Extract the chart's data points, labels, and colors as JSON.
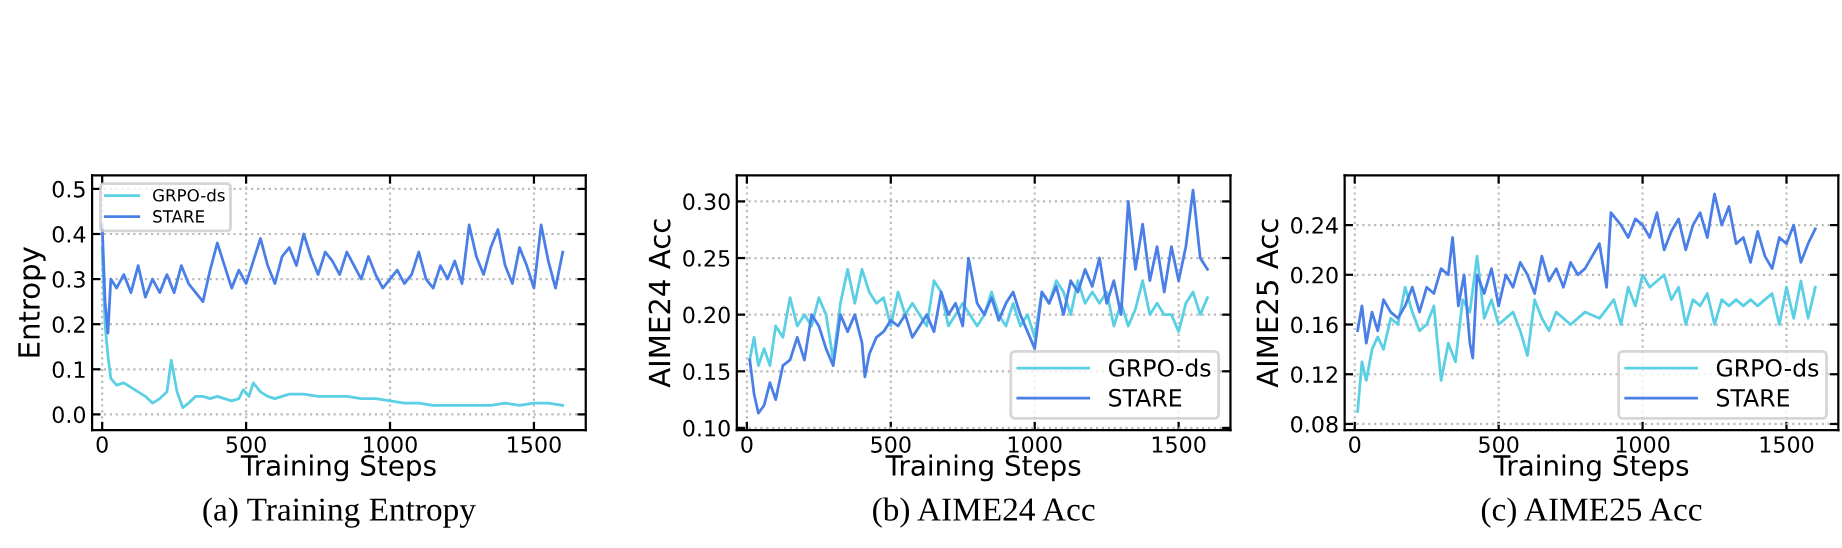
{
  "chart_data": [
    {
      "type": "line",
      "title": "(a) Training Entropy",
      "xlabel": "Training Steps",
      "ylabel": "Entropy",
      "xlim": [
        -35,
        1680
      ],
      "ylim": [
        -0.035,
        0.53
      ],
      "xticks": [
        0,
        500,
        1000,
        1500
      ],
      "yticks": [
        {
          "value": 0.0,
          "label": "0.0"
        },
        {
          "value": 0.1,
          "label": "0.1"
        },
        {
          "value": 0.2,
          "label": "0.2"
        },
        {
          "value": 0.3,
          "label": "0.3"
        },
        {
          "value": 0.4,
          "label": "0.4"
        },
        {
          "value": 0.5,
          "label": "0.5"
        }
      ],
      "grid": true,
      "legend": "top left",
      "series": [
        {
          "name": "GRPO-ds",
          "color": "#5bcfe3",
          "x": [
            0,
            10,
            20,
            30,
            50,
            75,
            100,
            125,
            150,
            175,
            200,
            225,
            240,
            260,
            280,
            300,
            325,
            350,
            375,
            400,
            425,
            450,
            475,
            490,
            510,
            525,
            550,
            575,
            600,
            650,
            700,
            750,
            800,
            850,
            900,
            950,
            1000,
            1050,
            1100,
            1150,
            1200,
            1250,
            1300,
            1350,
            1400,
            1450,
            1500,
            1550,
            1600
          ],
          "values": [
            0.37,
            0.2,
            0.13,
            0.08,
            0.065,
            0.07,
            0.06,
            0.05,
            0.04,
            0.025,
            0.035,
            0.05,
            0.12,
            0.05,
            0.015,
            0.025,
            0.04,
            0.04,
            0.035,
            0.04,
            0.035,
            0.03,
            0.035,
            0.055,
            0.04,
            0.07,
            0.05,
            0.04,
            0.035,
            0.045,
            0.045,
            0.04,
            0.04,
            0.04,
            0.035,
            0.035,
            0.03,
            0.025,
            0.025,
            0.02,
            0.02,
            0.02,
            0.02,
            0.02,
            0.025,
            0.02,
            0.025,
            0.025,
            0.02
          ]
        },
        {
          "name": "STARE",
          "color": "#4a7fe8",
          "x": [
            0,
            10,
            20,
            30,
            50,
            75,
            100,
            125,
            150,
            175,
            200,
            225,
            250,
            275,
            300,
            325,
            350,
            375,
            400,
            425,
            450,
            475,
            500,
            525,
            550,
            575,
            600,
            625,
            650,
            675,
            700,
            725,
            750,
            775,
            800,
            825,
            850,
            875,
            900,
            925,
            950,
            975,
            1000,
            1025,
            1050,
            1075,
            1100,
            1125,
            1150,
            1175,
            1200,
            1225,
            1250,
            1275,
            1300,
            1325,
            1350,
            1375,
            1400,
            1425,
            1450,
            1475,
            1500,
            1525,
            1550,
            1575,
            1600
          ],
          "values": [
            0.42,
            0.25,
            0.18,
            0.3,
            0.28,
            0.31,
            0.27,
            0.33,
            0.26,
            0.3,
            0.27,
            0.31,
            0.27,
            0.33,
            0.29,
            0.27,
            0.25,
            0.32,
            0.38,
            0.33,
            0.28,
            0.32,
            0.29,
            0.34,
            0.39,
            0.33,
            0.29,
            0.35,
            0.37,
            0.33,
            0.4,
            0.35,
            0.31,
            0.36,
            0.34,
            0.31,
            0.36,
            0.33,
            0.3,
            0.35,
            0.31,
            0.28,
            0.3,
            0.32,
            0.29,
            0.31,
            0.36,
            0.3,
            0.28,
            0.33,
            0.3,
            0.34,
            0.29,
            0.42,
            0.35,
            0.31,
            0.37,
            0.41,
            0.33,
            0.29,
            0.37,
            0.33,
            0.28,
            0.42,
            0.34,
            0.28,
            0.36
          ]
        }
      ]
    },
    {
      "type": "line",
      "title": "(b) AIME24 Acc",
      "xlabel": "Training Steps",
      "ylabel": "AIME24 Acc",
      "xlim": [
        -35,
        1680
      ],
      "ylim": [
        0.098,
        0.323
      ],
      "xticks": [
        0,
        500,
        1000,
        1500
      ],
      "yticks": [
        {
          "value": 0.1,
          "label": "0.10"
        },
        {
          "value": 0.15,
          "label": "0.15"
        },
        {
          "value": 0.2,
          "label": "0.20"
        },
        {
          "value": 0.25,
          "label": "0.25"
        },
        {
          "value": 0.3,
          "label": "0.30"
        }
      ],
      "grid": true,
      "legend": "lower right",
      "series": [
        {
          "name": "GRPO-ds",
          "color": "#5bcfe3",
          "x": [
            10,
            25,
            40,
            60,
            80,
            100,
            125,
            150,
            175,
            200,
            225,
            250,
            275,
            300,
            325,
            350,
            375,
            400,
            425,
            450,
            475,
            500,
            525,
            550,
            575,
            600,
            625,
            650,
            675,
            700,
            725,
            750,
            775,
            800,
            825,
            850,
            875,
            900,
            925,
            950,
            975,
            1000,
            1025,
            1050,
            1075,
            1100,
            1125,
            1150,
            1175,
            1200,
            1225,
            1250,
            1275,
            1300,
            1325,
            1350,
            1375,
            1400,
            1425,
            1450,
            1475,
            1500,
            1525,
            1550,
            1575,
            1600
          ],
          "values": [
            0.16,
            0.18,
            0.155,
            0.17,
            0.155,
            0.19,
            0.18,
            0.215,
            0.19,
            0.2,
            0.19,
            0.215,
            0.2,
            0.16,
            0.21,
            0.24,
            0.21,
            0.24,
            0.22,
            0.21,
            0.215,
            0.19,
            0.22,
            0.2,
            0.21,
            0.2,
            0.19,
            0.23,
            0.22,
            0.19,
            0.2,
            0.21,
            0.2,
            0.19,
            0.2,
            0.22,
            0.2,
            0.19,
            0.21,
            0.19,
            0.2,
            0.18,
            0.22,
            0.21,
            0.23,
            0.22,
            0.2,
            0.23,
            0.21,
            0.22,
            0.21,
            0.22,
            0.19,
            0.21,
            0.19,
            0.205,
            0.23,
            0.2,
            0.21,
            0.2,
            0.2,
            0.185,
            0.21,
            0.22,
            0.2,
            0.215
          ]
        },
        {
          "name": "STARE",
          "color": "#4a7fe8",
          "x": [
            10,
            25,
            40,
            60,
            80,
            100,
            125,
            150,
            175,
            200,
            225,
            250,
            275,
            300,
            325,
            350,
            375,
            400,
            410,
            425,
            450,
            475,
            500,
            525,
            550,
            575,
            600,
            625,
            650,
            675,
            700,
            725,
            750,
            770,
            800,
            825,
            850,
            875,
            900,
            925,
            950,
            975,
            1000,
            1025,
            1050,
            1075,
            1100,
            1125,
            1150,
            1175,
            1200,
            1225,
            1250,
            1275,
            1300,
            1325,
            1350,
            1375,
            1400,
            1425,
            1450,
            1475,
            1500,
            1525,
            1550,
            1575,
            1600
          ],
          "values": [
            0.16,
            0.13,
            0.113,
            0.12,
            0.14,
            0.125,
            0.155,
            0.16,
            0.18,
            0.16,
            0.2,
            0.19,
            0.17,
            0.155,
            0.2,
            0.185,
            0.2,
            0.175,
            0.145,
            0.165,
            0.18,
            0.185,
            0.195,
            0.19,
            0.2,
            0.18,
            0.19,
            0.2,
            0.185,
            0.22,
            0.2,
            0.21,
            0.19,
            0.25,
            0.21,
            0.2,
            0.215,
            0.195,
            0.21,
            0.22,
            0.2,
            0.185,
            0.17,
            0.22,
            0.21,
            0.225,
            0.2,
            0.23,
            0.22,
            0.24,
            0.225,
            0.25,
            0.21,
            0.23,
            0.2,
            0.3,
            0.24,
            0.28,
            0.23,
            0.26,
            0.22,
            0.26,
            0.23,
            0.26,
            0.31,
            0.25,
            0.24
          ]
        }
      ]
    },
    {
      "type": "line",
      "title": "(c) AIME25 Acc",
      "xlabel": "Training Steps",
      "ylabel": "AIME25 Acc",
      "xlim": [
        -35,
        1680
      ],
      "ylim": [
        0.075,
        0.28
      ],
      "xticks": [
        0,
        500,
        1000,
        1500
      ],
      "yticks": [
        {
          "value": 0.08,
          "label": "0.08"
        },
        {
          "value": 0.12,
          "label": "0.12"
        },
        {
          "value": 0.16,
          "label": "0.16"
        },
        {
          "value": 0.2,
          "label": "0.20"
        },
        {
          "value": 0.24,
          "label": "0.24"
        }
      ],
      "grid": true,
      "legend": "lower right",
      "series": [
        {
          "name": "GRPO-ds",
          "color": "#5bcfe3",
          "x": [
            10,
            25,
            40,
            60,
            80,
            100,
            125,
            150,
            175,
            200,
            225,
            250,
            275,
            300,
            325,
            350,
            375,
            400,
            425,
            450,
            475,
            500,
            525,
            550,
            575,
            600,
            625,
            650,
            675,
            700,
            750,
            800,
            850,
            900,
            925,
            950,
            975,
            1000,
            1025,
            1050,
            1075,
            1100,
            1125,
            1150,
            1175,
            1200,
            1225,
            1250,
            1275,
            1300,
            1325,
            1350,
            1375,
            1400,
            1425,
            1450,
            1475,
            1500,
            1525,
            1550,
            1575,
            1600
          ],
          "values": [
            0.09,
            0.13,
            0.115,
            0.14,
            0.15,
            0.14,
            0.165,
            0.16,
            0.19,
            0.17,
            0.155,
            0.16,
            0.175,
            0.115,
            0.145,
            0.13,
            0.18,
            0.17,
            0.215,
            0.165,
            0.18,
            0.16,
            0.165,
            0.17,
            0.155,
            0.135,
            0.18,
            0.165,
            0.155,
            0.17,
            0.16,
            0.17,
            0.165,
            0.18,
            0.16,
            0.19,
            0.175,
            0.2,
            0.19,
            0.195,
            0.2,
            0.18,
            0.19,
            0.16,
            0.18,
            0.175,
            0.185,
            0.16,
            0.18,
            0.175,
            0.18,
            0.175,
            0.18,
            0.175,
            0.18,
            0.185,
            0.16,
            0.19,
            0.165,
            0.195,
            0.165,
            0.19
          ]
        },
        {
          "name": "STARE",
          "color": "#4a7fe8",
          "x": [
            10,
            25,
            40,
            60,
            80,
            100,
            125,
            150,
            175,
            200,
            225,
            250,
            275,
            300,
            325,
            340,
            360,
            380,
            400,
            410,
            425,
            450,
            475,
            500,
            525,
            550,
            575,
            600,
            625,
            650,
            675,
            700,
            725,
            750,
            775,
            800,
            825,
            850,
            875,
            890,
            925,
            950,
            975,
            1000,
            1025,
            1050,
            1075,
            1100,
            1125,
            1150,
            1175,
            1200,
            1225,
            1250,
            1275,
            1300,
            1325,
            1350,
            1375,
            1400,
            1425,
            1450,
            1475,
            1500,
            1525,
            1550,
            1575,
            1600
          ],
          "values": [
            0.155,
            0.175,
            0.145,
            0.17,
            0.155,
            0.18,
            0.17,
            0.165,
            0.175,
            0.19,
            0.17,
            0.19,
            0.185,
            0.205,
            0.2,
            0.23,
            0.175,
            0.2,
            0.145,
            0.133,
            0.2,
            0.185,
            0.205,
            0.175,
            0.2,
            0.19,
            0.21,
            0.2,
            0.185,
            0.215,
            0.195,
            0.205,
            0.19,
            0.21,
            0.2,
            0.205,
            0.215,
            0.225,
            0.19,
            0.25,
            0.24,
            0.23,
            0.245,
            0.24,
            0.23,
            0.25,
            0.22,
            0.235,
            0.245,
            0.22,
            0.24,
            0.25,
            0.23,
            0.265,
            0.24,
            0.255,
            0.225,
            0.23,
            0.21,
            0.235,
            0.215,
            0.205,
            0.23,
            0.225,
            0.24,
            0.21,
            0.225,
            0.237
          ]
        }
      ]
    }
  ]
}
